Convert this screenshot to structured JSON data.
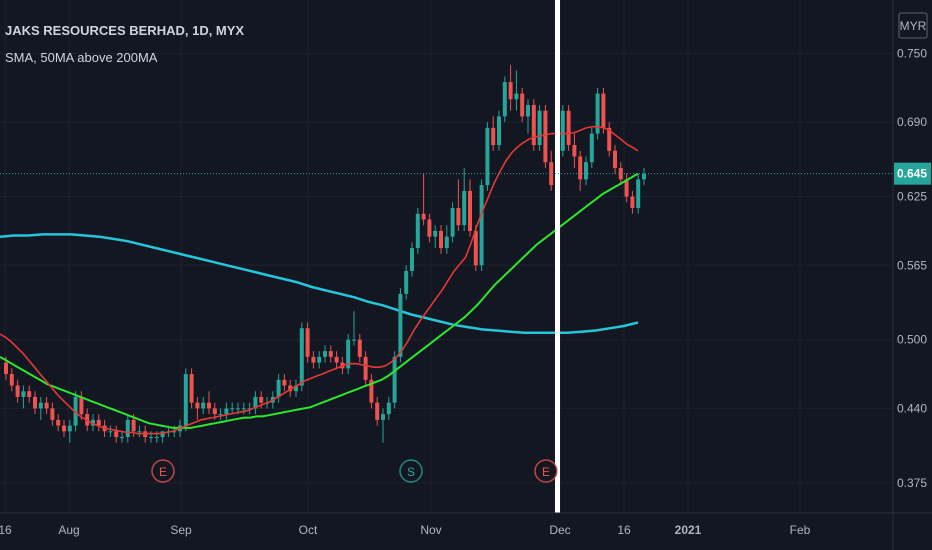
{
  "chart_data": {
    "type": "candlestick",
    "title": "JAKS RESOURCES BERHAD, 1D, MYX",
    "subtitle": "SMA, 50MA above 200MA",
    "currency": "MYR",
    "last_price": 0.645,
    "x_ticks": [
      "16",
      "Aug",
      "Sep",
      "Oct",
      "Nov",
      "Dec",
      "16",
      "2021",
      "Feb"
    ],
    "y_ticks": [
      0.375,
      0.44,
      0.5,
      0.565,
      0.625,
      0.69,
      0.75
    ],
    "ylim": [
      0.36,
      0.76
    ],
    "top_partial_tick": "0.750",
    "colors": {
      "background": "#131722",
      "up": "#26a69a",
      "down": "#ef5350",
      "ma_short": "#e53935",
      "ma_50": "#2ee62e",
      "ma_200": "#26c6da",
      "signal_line": "#ffffff"
    },
    "events": [
      {
        "label": "E",
        "date": "Aug 27",
        "color": "#ef5350"
      },
      {
        "label": "S",
        "date": "Oct 26",
        "color": "#26a69a"
      },
      {
        "label": "E",
        "date": "Nov 27",
        "color": "#ef5350"
      }
    ],
    "signal_line_date": "Nov 30",
    "candles": [
      {
        "o": 0.48,
        "h": 0.485,
        "l": 0.465,
        "c": 0.47
      },
      {
        "o": 0.47,
        "h": 0.475,
        "l": 0.455,
        "c": 0.46
      },
      {
        "o": 0.46,
        "h": 0.465,
        "l": 0.445,
        "c": 0.45
      },
      {
        "o": 0.45,
        "h": 0.46,
        "l": 0.44,
        "c": 0.455
      },
      {
        "o": 0.455,
        "h": 0.46,
        "l": 0.445,
        "c": 0.45
      },
      {
        "o": 0.45,
        "h": 0.455,
        "l": 0.435,
        "c": 0.44
      },
      {
        "o": 0.44,
        "h": 0.45,
        "l": 0.43,
        "c": 0.445
      },
      {
        "o": 0.445,
        "h": 0.45,
        "l": 0.435,
        "c": 0.44
      },
      {
        "o": 0.44,
        "h": 0.445,
        "l": 0.425,
        "c": 0.43
      },
      {
        "o": 0.43,
        "h": 0.435,
        "l": 0.42,
        "c": 0.425
      },
      {
        "o": 0.425,
        "h": 0.43,
        "l": 0.415,
        "c": 0.42
      },
      {
        "o": 0.42,
        "h": 0.43,
        "l": 0.41,
        "c": 0.425
      },
      {
        "o": 0.425,
        "h": 0.455,
        "l": 0.42,
        "c": 0.45
      },
      {
        "o": 0.45,
        "h": 0.455,
        "l": 0.43,
        "c": 0.435
      },
      {
        "o": 0.435,
        "h": 0.44,
        "l": 0.42,
        "c": 0.425
      },
      {
        "o": 0.425,
        "h": 0.435,
        "l": 0.42,
        "c": 0.43
      },
      {
        "o": 0.43,
        "h": 0.435,
        "l": 0.42,
        "c": 0.425
      },
      {
        "o": 0.425,
        "h": 0.43,
        "l": 0.415,
        "c": 0.42
      },
      {
        "o": 0.42,
        "h": 0.425,
        "l": 0.415,
        "c": 0.42
      },
      {
        "o": 0.42,
        "h": 0.425,
        "l": 0.41,
        "c": 0.415
      },
      {
        "o": 0.415,
        "h": 0.42,
        "l": 0.41,
        "c": 0.415
      },
      {
        "o": 0.415,
        "h": 0.435,
        "l": 0.41,
        "c": 0.43
      },
      {
        "o": 0.43,
        "h": 0.435,
        "l": 0.415,
        "c": 0.42
      },
      {
        "o": 0.42,
        "h": 0.425,
        "l": 0.415,
        "c": 0.42
      },
      {
        "o": 0.42,
        "h": 0.425,
        "l": 0.41,
        "c": 0.415
      },
      {
        "o": 0.415,
        "h": 0.42,
        "l": 0.41,
        "c": 0.415
      },
      {
        "o": 0.415,
        "h": 0.42,
        "l": 0.41,
        "c": 0.415
      },
      {
        "o": 0.415,
        "h": 0.42,
        "l": 0.41,
        "c": 0.42
      },
      {
        "o": 0.42,
        "h": 0.425,
        "l": 0.415,
        "c": 0.42
      },
      {
        "o": 0.42,
        "h": 0.425,
        "l": 0.415,
        "c": 0.42
      },
      {
        "o": 0.42,
        "h": 0.43,
        "l": 0.415,
        "c": 0.425
      },
      {
        "o": 0.425,
        "h": 0.475,
        "l": 0.42,
        "c": 0.47
      },
      {
        "o": 0.47,
        "h": 0.475,
        "l": 0.44,
        "c": 0.445
      },
      {
        "o": 0.445,
        "h": 0.45,
        "l": 0.43,
        "c": 0.44
      },
      {
        "o": 0.44,
        "h": 0.45,
        "l": 0.435,
        "c": 0.445
      },
      {
        "o": 0.445,
        "h": 0.455,
        "l": 0.435,
        "c": 0.44
      },
      {
        "o": 0.44,
        "h": 0.445,
        "l": 0.43,
        "c": 0.435
      },
      {
        "o": 0.435,
        "h": 0.44,
        "l": 0.43,
        "c": 0.435
      },
      {
        "o": 0.435,
        "h": 0.445,
        "l": 0.43,
        "c": 0.44
      },
      {
        "o": 0.44,
        "h": 0.445,
        "l": 0.435,
        "c": 0.44
      },
      {
        "o": 0.44,
        "h": 0.445,
        "l": 0.435,
        "c": 0.44
      },
      {
        "o": 0.44,
        "h": 0.445,
        "l": 0.435,
        "c": 0.44
      },
      {
        "o": 0.44,
        "h": 0.445,
        "l": 0.435,
        "c": 0.44
      },
      {
        "o": 0.44,
        "h": 0.455,
        "l": 0.435,
        "c": 0.45
      },
      {
        "o": 0.45,
        "h": 0.455,
        "l": 0.44,
        "c": 0.445
      },
      {
        "o": 0.445,
        "h": 0.45,
        "l": 0.44,
        "c": 0.445
      },
      {
        "o": 0.445,
        "h": 0.455,
        "l": 0.44,
        "c": 0.45
      },
      {
        "o": 0.45,
        "h": 0.47,
        "l": 0.445,
        "c": 0.465
      },
      {
        "o": 0.465,
        "h": 0.47,
        "l": 0.455,
        "c": 0.46
      },
      {
        "o": 0.46,
        "h": 0.465,
        "l": 0.45,
        "c": 0.455
      },
      {
        "o": 0.455,
        "h": 0.465,
        "l": 0.45,
        "c": 0.46
      },
      {
        "o": 0.46,
        "h": 0.515,
        "l": 0.455,
        "c": 0.51
      },
      {
        "o": 0.51,
        "h": 0.515,
        "l": 0.48,
        "c": 0.485
      },
      {
        "o": 0.485,
        "h": 0.49,
        "l": 0.475,
        "c": 0.48
      },
      {
        "o": 0.48,
        "h": 0.49,
        "l": 0.475,
        "c": 0.485
      },
      {
        "o": 0.485,
        "h": 0.495,
        "l": 0.48,
        "c": 0.49
      },
      {
        "o": 0.49,
        "h": 0.495,
        "l": 0.48,
        "c": 0.485
      },
      {
        "o": 0.485,
        "h": 0.49,
        "l": 0.475,
        "c": 0.48
      },
      {
        "o": 0.48,
        "h": 0.485,
        "l": 0.47,
        "c": 0.475
      },
      {
        "o": 0.475,
        "h": 0.505,
        "l": 0.47,
        "c": 0.5
      },
      {
        "o": 0.5,
        "h": 0.525,
        "l": 0.495,
        "c": 0.5
      },
      {
        "o": 0.5,
        "h": 0.505,
        "l": 0.48,
        "c": 0.485
      },
      {
        "o": 0.485,
        "h": 0.49,
        "l": 0.46,
        "c": 0.465
      },
      {
        "o": 0.465,
        "h": 0.47,
        "l": 0.44,
        "c": 0.445
      },
      {
        "o": 0.445,
        "h": 0.45,
        "l": 0.425,
        "c": 0.43
      },
      {
        "o": 0.43,
        "h": 0.44,
        "l": 0.41,
        "c": 0.435
      },
      {
        "o": 0.435,
        "h": 0.45,
        "l": 0.43,
        "c": 0.445
      },
      {
        "o": 0.445,
        "h": 0.49,
        "l": 0.44,
        "c": 0.485
      },
      {
        "o": 0.485,
        "h": 0.545,
        "l": 0.48,
        "c": 0.54
      },
      {
        "o": 0.54,
        "h": 0.565,
        "l": 0.535,
        "c": 0.56
      },
      {
        "o": 0.56,
        "h": 0.585,
        "l": 0.555,
        "c": 0.58
      },
      {
        "o": 0.58,
        "h": 0.615,
        "l": 0.575,
        "c": 0.61
      },
      {
        "o": 0.61,
        "h": 0.645,
        "l": 0.6,
        "c": 0.605
      },
      {
        "o": 0.605,
        "h": 0.61,
        "l": 0.585,
        "c": 0.59
      },
      {
        "o": 0.59,
        "h": 0.6,
        "l": 0.58,
        "c": 0.595
      },
      {
        "o": 0.595,
        "h": 0.6,
        "l": 0.575,
        "c": 0.58
      },
      {
        "o": 0.58,
        "h": 0.6,
        "l": 0.575,
        "c": 0.59
      },
      {
        "o": 0.59,
        "h": 0.62,
        "l": 0.585,
        "c": 0.615
      },
      {
        "o": 0.615,
        "h": 0.64,
        "l": 0.595,
        "c": 0.6
      },
      {
        "o": 0.6,
        "h": 0.65,
        "l": 0.595,
        "c": 0.63
      },
      {
        "o": 0.63,
        "h": 0.64,
        "l": 0.59,
        "c": 0.595
      },
      {
        "o": 0.595,
        "h": 0.6,
        "l": 0.56,
        "c": 0.565
      },
      {
        "o": 0.565,
        "h": 0.64,
        "l": 0.56,
        "c": 0.635
      },
      {
        "o": 0.635,
        "h": 0.69,
        "l": 0.63,
        "c": 0.685
      },
      {
        "o": 0.685,
        "h": 0.695,
        "l": 0.665,
        "c": 0.67
      },
      {
        "o": 0.67,
        "h": 0.7,
        "l": 0.665,
        "c": 0.695
      },
      {
        "o": 0.695,
        "h": 0.73,
        "l": 0.69,
        "c": 0.725
      },
      {
        "o": 0.725,
        "h": 0.74,
        "l": 0.7,
        "c": 0.71
      },
      {
        "o": 0.71,
        "h": 0.735,
        "l": 0.7,
        "c": 0.715
      },
      {
        "o": 0.715,
        "h": 0.72,
        "l": 0.69,
        "c": 0.695
      },
      {
        "o": 0.695,
        "h": 0.71,
        "l": 0.68,
        "c": 0.705
      },
      {
        "o": 0.705,
        "h": 0.71,
        "l": 0.665,
        "c": 0.67
      },
      {
        "o": 0.67,
        "h": 0.705,
        "l": 0.665,
        "c": 0.7
      },
      {
        "o": 0.7,
        "h": 0.705,
        "l": 0.65,
        "c": 0.655
      },
      {
        "o": 0.655,
        "h": 0.665,
        "l": 0.63,
        "c": 0.635
      },
      {
        "o": 0.635,
        "h": 0.67,
        "l": 0.63,
        "c": 0.665
      },
      {
        "o": 0.665,
        "h": 0.705,
        "l": 0.66,
        "c": 0.7
      },
      {
        "o": 0.7,
        "h": 0.705,
        "l": 0.665,
        "c": 0.67
      },
      {
        "o": 0.67,
        "h": 0.68,
        "l": 0.65,
        "c": 0.66
      },
      {
        "o": 0.66,
        "h": 0.665,
        "l": 0.63,
        "c": 0.64
      },
      {
        "o": 0.64,
        "h": 0.66,
        "l": 0.635,
        "c": 0.655
      },
      {
        "o": 0.655,
        "h": 0.685,
        "l": 0.65,
        "c": 0.68
      },
      {
        "o": 0.68,
        "h": 0.72,
        "l": 0.675,
        "c": 0.715
      },
      {
        "o": 0.715,
        "h": 0.72,
        "l": 0.68,
        "c": 0.685
      },
      {
        "o": 0.685,
        "h": 0.69,
        "l": 0.66,
        "c": 0.665
      },
      {
        "o": 0.665,
        "h": 0.67,
        "l": 0.645,
        "c": 0.65
      },
      {
        "o": 0.65,
        "h": 0.655,
        "l": 0.635,
        "c": 0.64
      },
      {
        "o": 0.64,
        "h": 0.645,
        "l": 0.62,
        "c": 0.625
      },
      {
        "o": 0.625,
        "h": 0.63,
        "l": 0.61,
        "c": 0.615
      },
      {
        "o": 0.615,
        "h": 0.645,
        "l": 0.61,
        "c": 0.64
      },
      {
        "o": 0.64,
        "h": 0.65,
        "l": 0.635,
        "c": 0.645
      }
    ],
    "ma_short_values": [
      0.505,
      0.502,
      0.498,
      0.493,
      0.488,
      0.482,
      0.476,
      0.47,
      0.464,
      0.458,
      0.452,
      0.447,
      0.442,
      0.437,
      0.433,
      0.43,
      0.427,
      0.425,
      0.423,
      0.422,
      0.421,
      0.42,
      0.419,
      0.419,
      0.418,
      0.418,
      0.418,
      0.418,
      0.418,
      0.419,
      0.42,
      0.422,
      0.424,
      0.426,
      0.428,
      0.43,
      0.431,
      0.432,
      0.433,
      0.434,
      0.435,
      0.436,
      0.437,
      0.438,
      0.44,
      0.442,
      0.444,
      0.446,
      0.449,
      0.452,
      0.455,
      0.458,
      0.461,
      0.464,
      0.466,
      0.468,
      0.47,
      0.472,
      0.474,
      0.476,
      0.478,
      0.479,
      0.479,
      0.478,
      0.477,
      0.476,
      0.476,
      0.477,
      0.48,
      0.485,
      0.491,
      0.499,
      0.508,
      0.516,
      0.523,
      0.53,
      0.537,
      0.544,
      0.552,
      0.56,
      0.566,
      0.572,
      0.585,
      0.6,
      0.613,
      0.625,
      0.637,
      0.647,
      0.656,
      0.663,
      0.668,
      0.672,
      0.675,
      0.677,
      0.678,
      0.679,
      0.68,
      0.68,
      0.68,
      0.68,
      0.681,
      0.683,
      0.685,
      0.686,
      0.686,
      0.685,
      0.683,
      0.679,
      0.675,
      0.671,
      0.668,
      0.665
    ],
    "ma_50_values": [
      0.485,
      0.482,
      0.479,
      0.476,
      0.473,
      0.47,
      0.467,
      0.464,
      0.461,
      0.459,
      0.457,
      0.455,
      0.453,
      0.451,
      0.449,
      0.447,
      0.445,
      0.443,
      0.441,
      0.439,
      0.437,
      0.435,
      0.433,
      0.431,
      0.429,
      0.427,
      0.426,
      0.425,
      0.424,
      0.423,
      0.423,
      0.423,
      0.423,
      0.424,
      0.425,
      0.426,
      0.427,
      0.428,
      0.429,
      0.43,
      0.431,
      0.432,
      0.432,
      0.433,
      0.433,
      0.434,
      0.435,
      0.436,
      0.437,
      0.438,
      0.439,
      0.44,
      0.441,
      0.443,
      0.445,
      0.447,
      0.449,
      0.451,
      0.453,
      0.455,
      0.457,
      0.459,
      0.461,
      0.463,
      0.465,
      0.468,
      0.472,
      0.476,
      0.48,
      0.484,
      0.488,
      0.492,
      0.496,
      0.5,
      0.504,
      0.508,
      0.512,
      0.516,
      0.52,
      0.525,
      0.53,
      0.536,
      0.542,
      0.548,
      0.553,
      0.558,
      0.563,
      0.568,
      0.573,
      0.578,
      0.583,
      0.587,
      0.591,
      0.595,
      0.599,
      0.603,
      0.607,
      0.611,
      0.615,
      0.619,
      0.623,
      0.627,
      0.63,
      0.633,
      0.636,
      0.639,
      0.642,
      0.645
    ],
    "ma_200_values": [
      0.59,
      0.591,
      0.591,
      0.592,
      0.592,
      0.592,
      0.591,
      0.59,
      0.588,
      0.586,
      0.583,
      0.58,
      0.577,
      0.574,
      0.571,
      0.568,
      0.565,
      0.562,
      0.559,
      0.556,
      0.553,
      0.55,
      0.546,
      0.543,
      0.54,
      0.537,
      0.533,
      0.53,
      0.526,
      0.522,
      0.519,
      0.516,
      0.513,
      0.511,
      0.509,
      0.508,
      0.507,
      0.506,
      0.506,
      0.506,
      0.506,
      0.507,
      0.508,
      0.51,
      0.512,
      0.515
    ]
  }
}
